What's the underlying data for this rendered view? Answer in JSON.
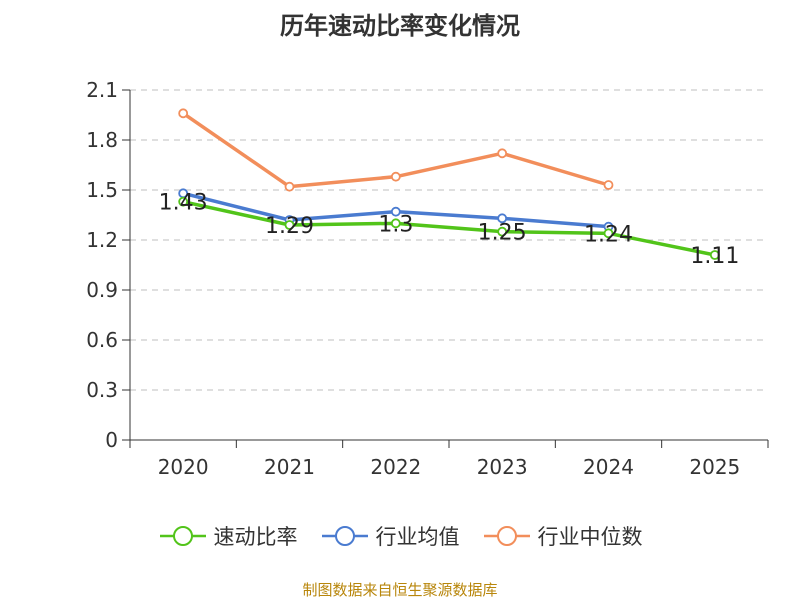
{
  "chart_data": {
    "type": "line",
    "title": "历年速动比率变化情况",
    "categories": [
      "2020",
      "2021",
      "2022",
      "2023",
      "2024",
      "2025"
    ],
    "ylim": [
      0,
      2.1
    ],
    "yticks": [
      "0",
      "0.3",
      "0.6",
      "0.9",
      "1.2",
      "1.5",
      "1.8",
      "2.1"
    ],
    "grid": true,
    "legend_position": "bottom",
    "series": [
      {
        "name": "速动比率",
        "color": "#52c41a",
        "values": [
          1.43,
          1.29,
          1.3,
          1.25,
          1.24,
          1.11
        ],
        "labels": [
          "1.43",
          "1.29",
          "1.3",
          "1.25",
          "1.24",
          "1.11"
        ]
      },
      {
        "name": "行业均值",
        "color": "#4a7bd0",
        "values": [
          1.48,
          1.32,
          1.37,
          1.33,
          1.28,
          null
        ]
      },
      {
        "name": "行业中位数",
        "color": "#f28e5b",
        "values": [
          1.96,
          1.52,
          1.58,
          1.72,
          1.53,
          null
        ]
      }
    ]
  },
  "footer": {
    "source": "制图数据来自恒生聚源数据库"
  }
}
